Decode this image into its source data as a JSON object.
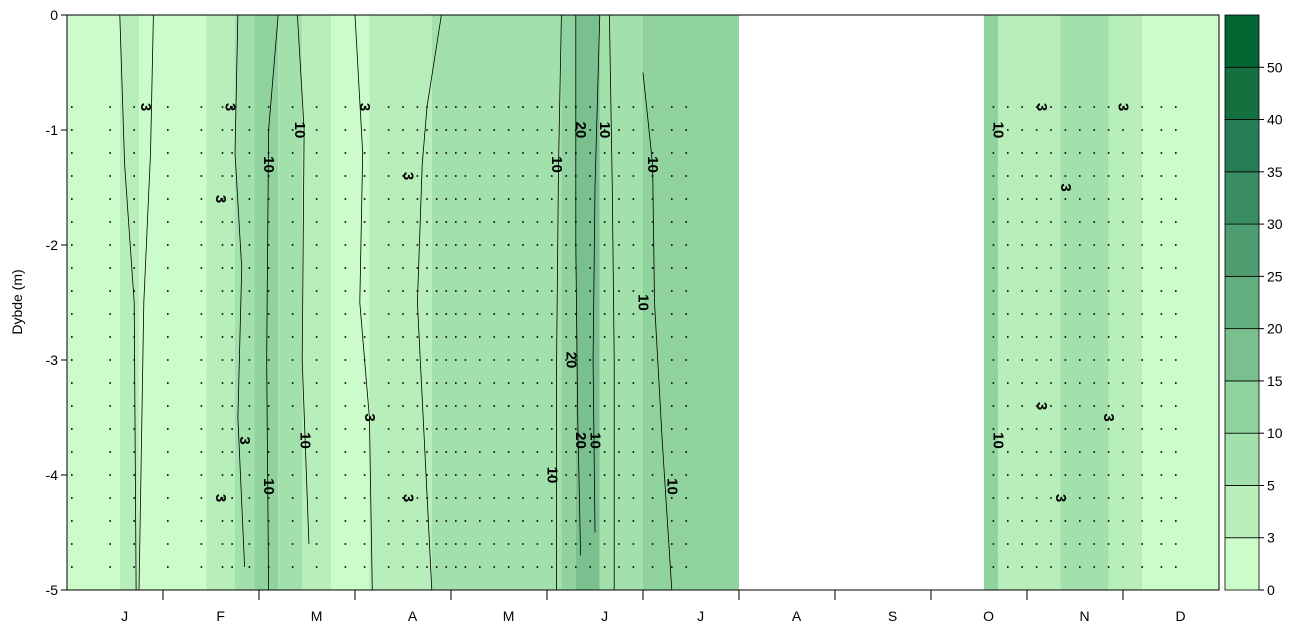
{
  "chart_data": {
    "type": "heatmap",
    "title": "",
    "ylabel": "Dybde (m)",
    "xlabel": "",
    "x_months": [
      "J",
      "F",
      "M",
      "A",
      "M",
      "J",
      "J",
      "A",
      "S",
      "O",
      "N",
      "D"
    ],
    "ylim": [
      -5,
      0
    ],
    "y_ticks": [
      {
        "value": 0,
        "label": "0"
      },
      {
        "value": -1,
        "label": "-1"
      },
      {
        "value": -2,
        "label": "-2"
      },
      {
        "value": -3,
        "label": "-3"
      },
      {
        "value": -4,
        "label": "-4"
      },
      {
        "value": -5,
        "label": "-5"
      }
    ],
    "colorbar": {
      "levels": [
        0,
        3,
        5,
        10,
        15,
        20,
        25,
        30,
        35,
        40,
        50,
        60
      ],
      "labels": [
        "0",
        "3",
        "5",
        "10",
        "15",
        "20",
        "25",
        "30",
        "35",
        "40",
        "50"
      ],
      "colors": [
        "#ccfcc9",
        "#b8eeba",
        "#a3e1ac",
        "#90d39e",
        "#7ac08f",
        "#63ae7f",
        "#4d9d70",
        "#3a8d63",
        "#277d55",
        "#14703f",
        "#046633"
      ]
    },
    "no_data_period": {
      "from_month": 7.0,
      "to_month": 9.55
    },
    "bands": [
      {
        "from_month": 0.0,
        "to_month": 0.55,
        "level": 0
      },
      {
        "from_month": 0.55,
        "to_month": 0.75,
        "level": 1
      },
      {
        "from_month": 0.75,
        "to_month": 1.45,
        "level": 0
      },
      {
        "from_month": 1.45,
        "to_month": 1.75,
        "level": 1
      },
      {
        "from_month": 1.75,
        "to_month": 1.95,
        "level": 2
      },
      {
        "from_month": 1.95,
        "to_month": 2.2,
        "level": 3
      },
      {
        "from_month": 2.2,
        "to_month": 2.45,
        "level": 2
      },
      {
        "from_month": 2.45,
        "to_month": 2.75,
        "level": 1
      },
      {
        "from_month": 2.75,
        "to_month": 3.15,
        "level": 0
      },
      {
        "from_month": 3.15,
        "to_month": 3.8,
        "level": 1
      },
      {
        "from_month": 3.8,
        "to_month": 5.15,
        "level": 2
      },
      {
        "from_month": 5.15,
        "to_month": 5.3,
        "level": 3
      },
      {
        "from_month": 5.3,
        "to_month": 5.55,
        "level": 4
      },
      {
        "from_month": 5.55,
        "to_month": 6.0,
        "level": 2
      },
      {
        "from_month": 6.0,
        "to_month": 7.0,
        "level": 3
      },
      {
        "from_month": 9.55,
        "to_month": 9.7,
        "level": 3
      },
      {
        "from_month": 9.7,
        "to_month": 10.35,
        "level": 1
      },
      {
        "from_month": 10.35,
        "to_month": 10.85,
        "level": 2
      },
      {
        "from_month": 10.85,
        "to_month": 11.2,
        "level": 1
      },
      {
        "from_month": 11.2,
        "to_month": 12.0,
        "level": 0
      }
    ],
    "contour_lines": [
      {
        "label": "3",
        "points": [
          [
            0.55,
            0
          ],
          [
            0.6,
            -1.3
          ],
          [
            0.7,
            -2.5
          ],
          [
            0.72,
            -5
          ]
        ]
      },
      {
        "label": "3",
        "points": [
          [
            0.9,
            0
          ],
          [
            0.87,
            -1.2
          ],
          [
            0.8,
            -2.5
          ],
          [
            0.75,
            -5
          ]
        ]
      },
      {
        "label": "3",
        "points": [
          [
            1.78,
            0
          ],
          [
            1.75,
            -1.2
          ],
          [
            1.82,
            -2.2
          ],
          [
            1.78,
            -3.5
          ],
          [
            1.85,
            -4.8
          ]
        ]
      },
      {
        "label": "10",
        "points": [
          [
            2.2,
            0
          ],
          [
            2.1,
            -1.0
          ],
          [
            2.08,
            -3.0
          ],
          [
            2.1,
            -5
          ]
        ]
      },
      {
        "label": "10",
        "points": [
          [
            2.4,
            0
          ],
          [
            2.47,
            -1.0
          ],
          [
            2.45,
            -3.0
          ],
          [
            2.52,
            -4.6
          ]
        ]
      },
      {
        "label": "3",
        "points": [
          [
            3.0,
            0
          ],
          [
            3.08,
            -1.2
          ],
          [
            3.05,
            -2.5
          ],
          [
            3.15,
            -3.5
          ],
          [
            3.18,
            -5
          ]
        ]
      },
      {
        "label": "3",
        "points": [
          [
            3.9,
            0
          ],
          [
            3.75,
            -0.8
          ],
          [
            3.7,
            -1.3
          ],
          [
            3.65,
            -2.5
          ],
          [
            3.8,
            -5
          ]
        ]
      },
      {
        "label": "10",
        "points": [
          [
            5.15,
            0
          ],
          [
            5.12,
            -1.3
          ],
          [
            5.1,
            -3.0
          ],
          [
            5.1,
            -5
          ]
        ]
      },
      {
        "label": "20",
        "points": [
          [
            5.3,
            0
          ],
          [
            5.3,
            -2.0
          ],
          [
            5.32,
            -3.5
          ],
          [
            5.35,
            -4.7
          ]
        ]
      },
      {
        "label": "20",
        "points": [
          [
            5.55,
            0
          ],
          [
            5.5,
            -1.5
          ],
          [
            5.48,
            -3.0
          ],
          [
            5.5,
            -4.5
          ]
        ]
      },
      {
        "label": "10",
        "points": [
          [
            5.65,
            0
          ],
          [
            5.68,
            -1.5
          ],
          [
            5.7,
            -3.0
          ],
          [
            5.7,
            -5
          ]
        ]
      },
      {
        "label": "10",
        "points": [
          [
            6.0,
            -0.5
          ],
          [
            6.1,
            -1.3
          ],
          [
            6.12,
            -2.5
          ],
          [
            6.2,
            -3.7
          ],
          [
            6.3,
            -5
          ]
        ]
      }
    ],
    "contour_labels": [
      {
        "text": "3",
        "month": 0.82,
        "depth": -0.8
      },
      {
        "text": "3",
        "month": 1.7,
        "depth": -0.8
      },
      {
        "text": "3",
        "month": 1.6,
        "depth": -1.6
      },
      {
        "text": "3",
        "month": 1.85,
        "depth": -3.7
      },
      {
        "text": "3",
        "month": 1.6,
        "depth": -4.2
      },
      {
        "text": "10",
        "month": 2.1,
        "depth": -1.3
      },
      {
        "text": "10",
        "month": 2.42,
        "depth": -1.0
      },
      {
        "text": "10",
        "month": 2.48,
        "depth": -3.7
      },
      {
        "text": "10",
        "month": 2.1,
        "depth": -4.1
      },
      {
        "text": "3",
        "month": 3.1,
        "depth": -0.8
      },
      {
        "text": "3",
        "month": 3.55,
        "depth": -1.4
      },
      {
        "text": "3",
        "month": 3.15,
        "depth": -3.5
      },
      {
        "text": "3",
        "month": 3.55,
        "depth": -4.2
      },
      {
        "text": "10",
        "month": 5.1,
        "depth": -1.3
      },
      {
        "text": "20",
        "month": 5.35,
        "depth": -1.0
      },
      {
        "text": "10",
        "month": 5.6,
        "depth": -1.0
      },
      {
        "text": "10",
        "month": 6.1,
        "depth": -1.3
      },
      {
        "text": "10",
        "month": 6.0,
        "depth": -2.5
      },
      {
        "text": "20",
        "month": 5.25,
        "depth": -3.0
      },
      {
        "text": "20",
        "month": 5.35,
        "depth": -3.7
      },
      {
        "text": "10",
        "month": 5.5,
        "depth": -3.7
      },
      {
        "text": "10",
        "month": 5.05,
        "depth": -4.0
      },
      {
        "text": "10",
        "month": 6.3,
        "depth": -4.1
      },
      {
        "text": "10",
        "month": 9.7,
        "depth": -1.0
      },
      {
        "text": "3",
        "month": 10.15,
        "depth": -0.8
      },
      {
        "text": "3",
        "month": 10.4,
        "depth": -1.5
      },
      {
        "text": "3",
        "month": 10.15,
        "depth": -3.4
      },
      {
        "text": "3",
        "month": 10.35,
        "depth": -4.2
      },
      {
        "text": "3",
        "month": 11.0,
        "depth": -0.8
      },
      {
        "text": "3",
        "month": 10.85,
        "depth": -3.5
      },
      {
        "text": "10",
        "month": 9.7,
        "depth": -3.7
      }
    ],
    "sample_columns_months": [
      0.05,
      0.45,
      0.7,
      1.05,
      1.4,
      1.62,
      1.72,
      1.9,
      2.1,
      2.35,
      2.6,
      2.9,
      3.1,
      3.35,
      3.5,
      3.65,
      3.75,
      3.85,
      3.95,
      4.05,
      4.15,
      4.3,
      4.45,
      4.6,
      4.75,
      4.9,
      5.05,
      5.2,
      5.3,
      5.45,
      5.6,
      5.75,
      5.9,
      6.1,
      6.3,
      6.45,
      9.65,
      9.8,
      9.95,
      10.1,
      10.25,
      10.4,
      10.55,
      10.7,
      10.85,
      11.0,
      11.2,
      11.4,
      11.55
    ]
  }
}
